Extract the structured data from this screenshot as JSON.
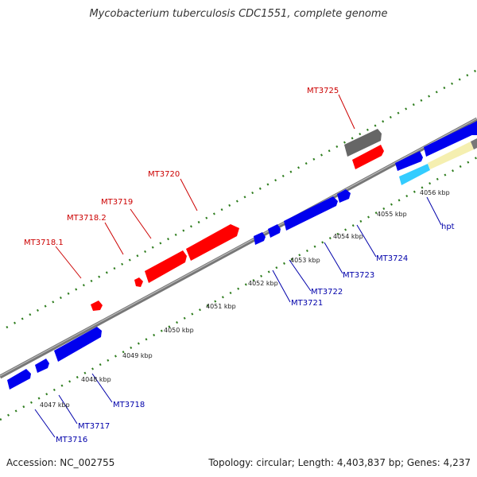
{
  "title": "Mycobacterium tuberculosis CDC1551, complete genome",
  "footer": {
    "accession": "Accession: NC_002755",
    "summary": "Topology: circular; Length: 4,403,837 bp; Genes: 4,237"
  },
  "colors": {
    "backbone": "#888888",
    "tick_dots": "#2e7d1e",
    "forward_gene": "#ff0000",
    "reverse_gene": "#0000ee",
    "forward_label": "#cc0000",
    "reverse_label": "#0000aa",
    "dark_gene": "#666666",
    "cyan_gene": "#33ccff",
    "pale_gene": "#f5efb0"
  },
  "ticks": [
    "4047 kbp",
    "4048 kbp",
    "4049 kbp",
    "4050 kbp",
    "4051 kbp",
    "4052 kbp",
    "4053 kbp",
    "4054 kbp",
    "4055 kbp",
    "4056 kbp"
  ],
  "forward_labels": [
    "MT3718.1",
    "MT3718.2",
    "MT3719",
    "MT3720",
    "MT3725"
  ],
  "reverse_labels": [
    "MT3716",
    "MT3717",
    "MT3718",
    "MT3721",
    "MT3722",
    "MT3723",
    "MT3724",
    "hpt"
  ]
}
